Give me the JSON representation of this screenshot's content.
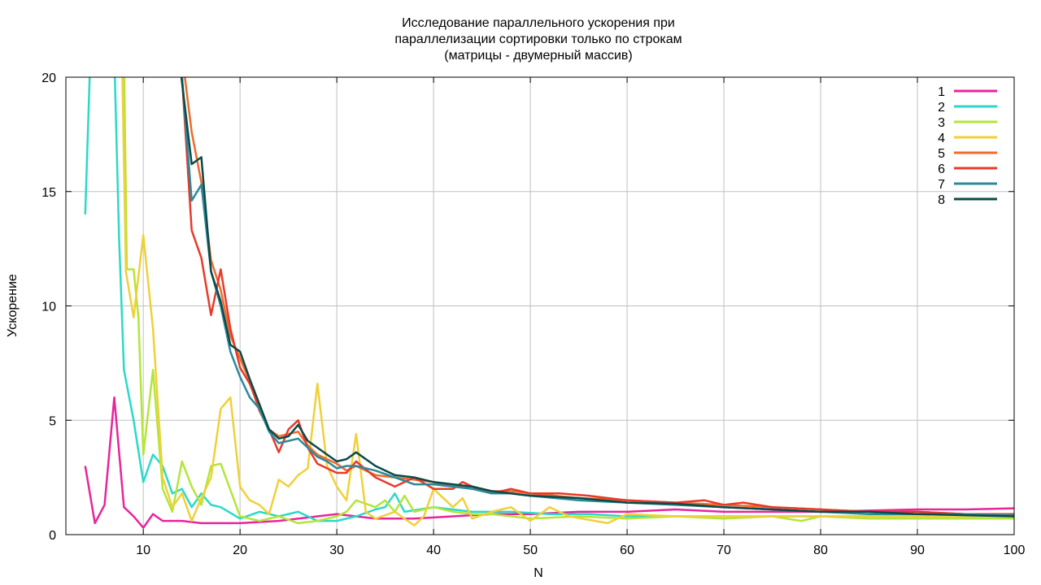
{
  "chart_data": {
    "type": "line",
    "title_lines": [
      "Исследование параллельного ускорения при",
      "параллелизации сортировки только по строкам",
      "(матрицы - двумерный массив)"
    ],
    "xlabel": "N",
    "ylabel": "Ускорение",
    "xlim": [
      2,
      100
    ],
    "ylim": [
      0,
      20
    ],
    "x_ticks": [
      10,
      20,
      30,
      40,
      50,
      60,
      70,
      80,
      90,
      100
    ],
    "y_ticks": [
      0,
      5,
      10,
      15,
      20
    ],
    "grid": true,
    "legend_position": "top-right",
    "series": [
      {
        "name": "1",
        "color": "#e8259a",
        "points": [
          [
            4,
            3.0
          ],
          [
            5,
            0.5
          ],
          [
            6,
            1.3
          ],
          [
            7,
            6.0
          ],
          [
            8,
            1.2
          ],
          [
            9,
            0.8
          ],
          [
            10,
            0.3
          ],
          [
            11,
            0.9
          ],
          [
            12,
            0.6
          ],
          [
            14,
            0.6
          ],
          [
            16,
            0.5
          ],
          [
            20,
            0.5
          ],
          [
            24,
            0.6
          ],
          [
            28,
            0.8
          ],
          [
            30,
            0.9
          ],
          [
            34,
            0.7
          ],
          [
            38,
            0.7
          ],
          [
            42,
            0.8
          ],
          [
            46,
            0.9
          ],
          [
            50,
            0.9
          ],
          [
            55,
            1.0
          ],
          [
            60,
            1.0
          ],
          [
            65,
            1.1
          ],
          [
            70,
            1.0
          ],
          [
            75,
            1.0
          ],
          [
            80,
            1.0
          ],
          [
            85,
            1.05
          ],
          [
            90,
            1.1
          ],
          [
            95,
            1.1
          ],
          [
            100,
            1.15
          ]
        ]
      },
      {
        "name": "2",
        "color": "#2bd9c8",
        "points": [
          [
            4,
            14.0
          ],
          [
            4.5,
            20.5
          ],
          [
            7,
            21
          ],
          [
            7.5,
            13
          ],
          [
            8,
            7.2
          ],
          [
            9,
            5.0
          ],
          [
            10,
            2.3
          ],
          [
            11,
            3.5
          ],
          [
            12,
            3.0
          ],
          [
            13,
            1.8
          ],
          [
            14,
            2.0
          ],
          [
            15,
            1.2
          ],
          [
            16,
            1.8
          ],
          [
            17,
            1.3
          ],
          [
            18,
            1.2
          ],
          [
            20,
            0.7
          ],
          [
            22,
            1.0
          ],
          [
            24,
            0.8
          ],
          [
            26,
            1.0
          ],
          [
            28,
            0.6
          ],
          [
            30,
            0.6
          ],
          [
            32,
            0.8
          ],
          [
            34,
            1.1
          ],
          [
            35,
            1.2
          ],
          [
            36,
            1.8
          ],
          [
            37,
            1.0
          ],
          [
            40,
            1.2
          ],
          [
            44,
            1.0
          ],
          [
            48,
            1.0
          ],
          [
            52,
            0.9
          ],
          [
            56,
            0.9
          ],
          [
            60,
            0.8
          ],
          [
            65,
            0.8
          ],
          [
            70,
            0.8
          ],
          [
            75,
            0.8
          ],
          [
            80,
            0.8
          ],
          [
            85,
            0.8
          ],
          [
            90,
            0.8
          ],
          [
            95,
            0.8
          ],
          [
            100,
            0.8
          ]
        ]
      },
      {
        "name": "3",
        "color": "#b3e53a",
        "points": [
          [
            8,
            21
          ],
          [
            8.3,
            11.6
          ],
          [
            9,
            11.6
          ],
          [
            9.5,
            9.5
          ],
          [
            10,
            3.5
          ],
          [
            11,
            7.2
          ],
          [
            12,
            2.0
          ],
          [
            13,
            1.0
          ],
          [
            14,
            3.2
          ],
          [
            15,
            2.1
          ],
          [
            16,
            1.3
          ],
          [
            17,
            3.0
          ],
          [
            18,
            3.1
          ],
          [
            20,
            0.8
          ],
          [
            22,
            0.6
          ],
          [
            24,
            0.8
          ],
          [
            26,
            0.5
          ],
          [
            28,
            0.6
          ],
          [
            30,
            0.8
          ],
          [
            31,
            1.0
          ],
          [
            32,
            1.5
          ],
          [
            34,
            1.2
          ],
          [
            35,
            1.5
          ],
          [
            36,
            1.0
          ],
          [
            37,
            1.7
          ],
          [
            38,
            1.0
          ],
          [
            40,
            1.2
          ],
          [
            42,
            1.0
          ],
          [
            44,
            0.9
          ],
          [
            46,
            0.9
          ],
          [
            50,
            0.7
          ],
          [
            55,
            0.8
          ],
          [
            60,
            0.7
          ],
          [
            65,
            0.8
          ],
          [
            70,
            0.7
          ],
          [
            75,
            0.8
          ],
          [
            78,
            0.6
          ],
          [
            80,
            0.8
          ],
          [
            85,
            0.7
          ],
          [
            90,
            0.7
          ],
          [
            95,
            0.7
          ],
          [
            100,
            0.7
          ]
        ]
      },
      {
        "name": "4",
        "color": "#f0d03a",
        "points": [
          [
            7.8,
            21
          ],
          [
            8.2,
            11.5
          ],
          [
            9,
            9.5
          ],
          [
            10,
            13.1
          ],
          [
            11,
            9.0
          ],
          [
            12,
            2.5
          ],
          [
            13,
            1.2
          ],
          [
            14,
            1.8
          ],
          [
            15,
            0.6
          ],
          [
            16,
            1.6
          ],
          [
            17,
            2.5
          ],
          [
            18,
            5.5
          ],
          [
            19,
            6.0
          ],
          [
            20,
            2.1
          ],
          [
            21,
            1.5
          ],
          [
            22,
            1.3
          ],
          [
            23,
            0.9
          ],
          [
            24,
            2.4
          ],
          [
            25,
            2.1
          ],
          [
            26,
            2.6
          ],
          [
            27,
            2.9
          ],
          [
            28,
            6.6
          ],
          [
            29,
            3.0
          ],
          [
            30,
            2.1
          ],
          [
            31,
            1.5
          ],
          [
            32,
            4.4
          ],
          [
            33,
            1.0
          ],
          [
            34,
            0.7
          ],
          [
            36,
            1.0
          ],
          [
            38,
            0.4
          ],
          [
            39,
            0.8
          ],
          [
            40,
            2.0
          ],
          [
            42,
            1.2
          ],
          [
            43,
            1.6
          ],
          [
            44,
            0.7
          ],
          [
            46,
            1.0
          ],
          [
            48,
            1.2
          ],
          [
            50,
            0.6
          ],
          [
            52,
            1.2
          ],
          [
            54,
            0.8
          ],
          [
            58,
            0.5
          ],
          [
            60,
            0.9
          ],
          [
            65,
            0.8
          ],
          [
            70,
            0.8
          ],
          [
            75,
            0.8
          ],
          [
            80,
            0.8
          ],
          [
            85,
            0.8
          ],
          [
            90,
            0.8
          ],
          [
            95,
            0.8
          ],
          [
            100,
            0.8
          ]
        ]
      },
      {
        "name": "5",
        "color": "#f06a2a",
        "points": [
          [
            14,
            21
          ],
          [
            15,
            17.6
          ],
          [
            16,
            15.4
          ],
          [
            17,
            12.0
          ],
          [
            18,
            10.7
          ],
          [
            19,
            8.7
          ],
          [
            20,
            7.7
          ],
          [
            21,
            6.7
          ],
          [
            22,
            5.4
          ],
          [
            23,
            4.6
          ],
          [
            24,
            4.3
          ],
          [
            25,
            4.4
          ],
          [
            26,
            4.5
          ],
          [
            27,
            3.9
          ],
          [
            28,
            3.5
          ],
          [
            29,
            3.3
          ],
          [
            30,
            3.1
          ],
          [
            31,
            2.8
          ],
          [
            32,
            3.0
          ],
          [
            34,
            2.6
          ],
          [
            36,
            2.5
          ],
          [
            38,
            2.4
          ],
          [
            40,
            2.3
          ],
          [
            42,
            2.1
          ],
          [
            44,
            2.1
          ],
          [
            46,
            1.9
          ],
          [
            48,
            1.9
          ],
          [
            50,
            1.8
          ],
          [
            55,
            1.6
          ],
          [
            60,
            1.5
          ],
          [
            65,
            1.4
          ],
          [
            70,
            1.3
          ],
          [
            75,
            1.2
          ],
          [
            80,
            1.1
          ],
          [
            85,
            1.0
          ],
          [
            90,
            1.0
          ],
          [
            95,
            0.9
          ],
          [
            100,
            0.9
          ]
        ]
      },
      {
        "name": "6",
        "color": "#e83a2a",
        "points": [
          [
            14,
            20
          ],
          [
            15,
            13.3
          ],
          [
            16,
            12.1
          ],
          [
            17,
            9.6
          ],
          [
            18,
            11.6
          ],
          [
            19,
            9.0
          ],
          [
            20,
            7.3
          ],
          [
            21,
            6.6
          ],
          [
            22,
            5.5
          ],
          [
            23,
            4.6
          ],
          [
            24,
            3.6
          ],
          [
            25,
            4.6
          ],
          [
            26,
            5.0
          ],
          [
            27,
            3.8
          ],
          [
            28,
            3.1
          ],
          [
            29,
            2.9
          ],
          [
            30,
            2.7
          ],
          [
            31,
            2.7
          ],
          [
            32,
            3.2
          ],
          [
            34,
            2.5
          ],
          [
            36,
            2.1
          ],
          [
            38,
            2.5
          ],
          [
            40,
            2.0
          ],
          [
            42,
            2.0
          ],
          [
            43,
            2.3
          ],
          [
            44,
            2.1
          ],
          [
            46,
            1.8
          ],
          [
            48,
            2.0
          ],
          [
            50,
            1.8
          ],
          [
            53,
            1.8
          ],
          [
            56,
            1.7
          ],
          [
            60,
            1.5
          ],
          [
            65,
            1.4
          ],
          [
            68,
            1.5
          ],
          [
            70,
            1.3
          ],
          [
            72,
            1.4
          ],
          [
            75,
            1.2
          ],
          [
            80,
            1.1
          ],
          [
            85,
            1.0
          ],
          [
            90,
            1.0
          ],
          [
            95,
            0.9
          ],
          [
            100,
            0.9
          ]
        ]
      },
      {
        "name": "7",
        "color": "#2a8a9a",
        "points": [
          [
            14,
            20
          ],
          [
            15,
            14.6
          ],
          [
            16,
            15.3
          ],
          [
            17,
            11.5
          ],
          [
            18,
            10.0
          ],
          [
            19,
            8.0
          ],
          [
            20,
            6.9
          ],
          [
            21,
            6.0
          ],
          [
            22,
            5.5
          ],
          [
            23,
            4.5
          ],
          [
            24,
            4.0
          ],
          [
            25,
            4.1
          ],
          [
            26,
            4.2
          ],
          [
            27,
            3.8
          ],
          [
            28,
            3.4
          ],
          [
            29,
            3.2
          ],
          [
            30,
            2.9
          ],
          [
            31,
            3.0
          ],
          [
            32,
            3.0
          ],
          [
            34,
            2.8
          ],
          [
            36,
            2.5
          ],
          [
            38,
            2.2
          ],
          [
            40,
            2.2
          ],
          [
            42,
            2.1
          ],
          [
            44,
            2.0
          ],
          [
            46,
            1.8
          ],
          [
            48,
            1.8
          ],
          [
            50,
            1.7
          ],
          [
            55,
            1.5
          ],
          [
            60,
            1.4
          ],
          [
            65,
            1.3
          ],
          [
            70,
            1.2
          ],
          [
            75,
            1.1
          ],
          [
            80,
            1.0
          ],
          [
            85,
            0.9
          ],
          [
            90,
            0.9
          ],
          [
            95,
            0.9
          ],
          [
            100,
            0.85
          ]
        ]
      },
      {
        "name": "8",
        "color": "#0b4a48",
        "points": [
          [
            13.8,
            20.5
          ],
          [
            15,
            16.2
          ],
          [
            16,
            16.5
          ],
          [
            17,
            11.5
          ],
          [
            18,
            10.2
          ],
          [
            19,
            8.3
          ],
          [
            20,
            8.0
          ],
          [
            21,
            6.8
          ],
          [
            22,
            5.7
          ],
          [
            23,
            4.6
          ],
          [
            24,
            4.2
          ],
          [
            25,
            4.3
          ],
          [
            26,
            4.8
          ],
          [
            27,
            4.1
          ],
          [
            28,
            3.8
          ],
          [
            29,
            3.5
          ],
          [
            30,
            3.2
          ],
          [
            31,
            3.3
          ],
          [
            32,
            3.6
          ],
          [
            34,
            3.0
          ],
          [
            36,
            2.6
          ],
          [
            38,
            2.5
          ],
          [
            40,
            2.3
          ],
          [
            42,
            2.2
          ],
          [
            44,
            2.1
          ],
          [
            46,
            1.9
          ],
          [
            48,
            1.8
          ],
          [
            50,
            1.7
          ],
          [
            55,
            1.6
          ],
          [
            60,
            1.4
          ],
          [
            65,
            1.35
          ],
          [
            70,
            1.2
          ],
          [
            75,
            1.1
          ],
          [
            80,
            1.0
          ],
          [
            85,
            1.0
          ],
          [
            90,
            0.9
          ],
          [
            95,
            0.85
          ],
          [
            100,
            0.8
          ]
        ]
      }
    ]
  }
}
